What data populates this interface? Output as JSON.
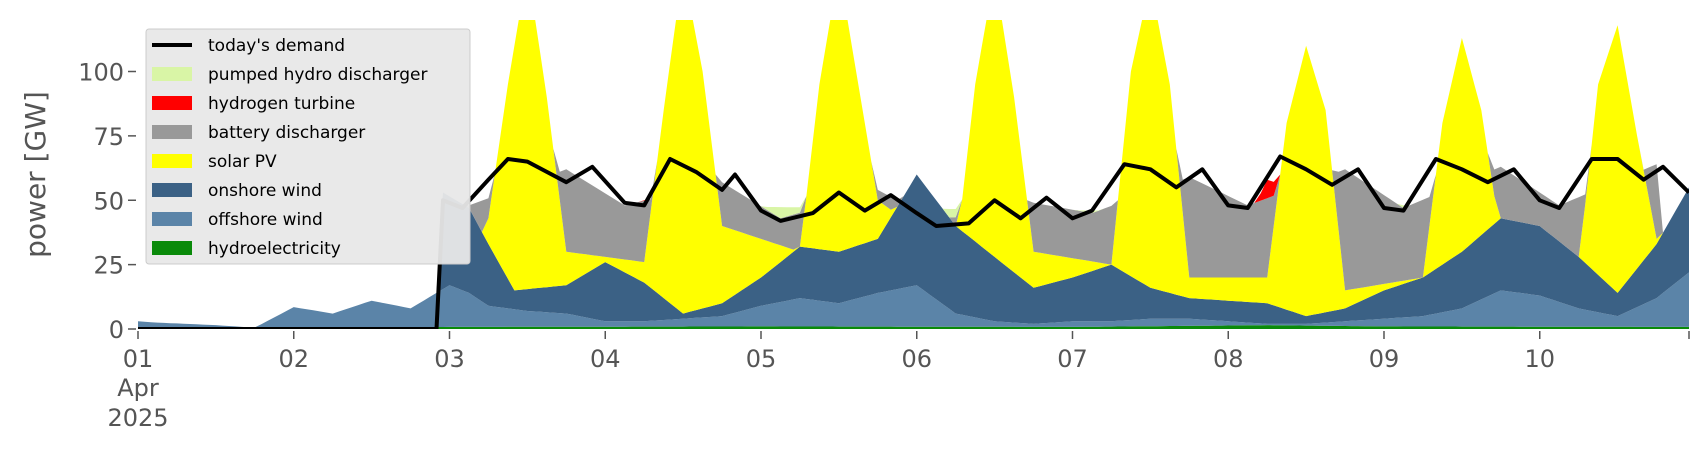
{
  "chart_data": {
    "type": "area",
    "title": "",
    "xlabel": "",
    "ylabel": "power [GW]",
    "ylim": [
      0,
      120
    ],
    "yticks": [
      0,
      25,
      50,
      75,
      100
    ],
    "x_range": [
      "2025-04-01T00:00",
      "2025-04-10T23:00"
    ],
    "x_tick_dates": [
      "2025-04-01",
      "2025-04-02",
      "2025-04-03",
      "2025-04-04",
      "2025-04-05",
      "2025-04-06",
      "2025-04-07",
      "2025-04-08",
      "2025-04-09",
      "2025-04-10"
    ],
    "x_tick_labels": [
      "01",
      "02",
      "03",
      "04",
      "05",
      "06",
      "07",
      "08",
      "09",
      "10"
    ],
    "x_tick_sublabels": [
      "Apr",
      "2025"
    ],
    "stacking": "stacked, bottom to top: hydroelectricity, offshore wind, onshore wind, solar PV, battery discharger, hydrogen turbine, pumped hydro discharger",
    "legend_position": "upper left",
    "grid": false,
    "legend_order": [
      "today's demand",
      "pumped hydro discharger",
      "hydrogen turbine",
      "battery discharger",
      "solar PV",
      "onshore wind",
      "offshore wind",
      "hydroelectricity"
    ],
    "series": [
      {
        "name": "hydroelectricity",
        "color": "#0a8a0a",
        "points": [
          [
            "2025-04-01T00:00",
            0.5
          ],
          [
            "2025-04-03T00:00",
            0.8
          ],
          [
            "2025-04-05T00:00",
            1.0
          ],
          [
            "2025-04-07T00:00",
            0.8
          ],
          [
            "2025-04-08T06:00",
            1.5
          ],
          [
            "2025-04-09T00:00",
            1.0
          ],
          [
            "2025-04-10T23:00",
            0.8
          ]
        ]
      },
      {
        "name": "offshore wind",
        "color": "#5b84a8",
        "points": [
          [
            "2025-04-01T00:00",
            3
          ],
          [
            "2025-04-01T02:00",
            2.6
          ],
          [
            "2025-04-01T12:00",
            1.5
          ],
          [
            "2025-04-01T18:00",
            0.5
          ],
          [
            "2025-04-02T00:00",
            8.5
          ],
          [
            "2025-04-02T06:00",
            6
          ],
          [
            "2025-04-02T12:00",
            11
          ],
          [
            "2025-04-02T18:00",
            8
          ],
          [
            "2025-04-03T00:00",
            17
          ],
          [
            "2025-04-03T03:00",
            14
          ],
          [
            "2025-04-03T06:00",
            9
          ],
          [
            "2025-04-03T12:00",
            7
          ],
          [
            "2025-04-03T18:00",
            6
          ],
          [
            "2025-04-04T00:00",
            3
          ],
          [
            "2025-04-04T06:00",
            3
          ],
          [
            "2025-04-04T12:00",
            4
          ],
          [
            "2025-04-04T18:00",
            5
          ],
          [
            "2025-04-05T00:00",
            9
          ],
          [
            "2025-04-05T06:00",
            12
          ],
          [
            "2025-04-05T12:00",
            10
          ],
          [
            "2025-04-05T18:00",
            14
          ],
          [
            "2025-04-06T00:00",
            17
          ],
          [
            "2025-04-06T06:00",
            6
          ],
          [
            "2025-04-06T12:00",
            3
          ],
          [
            "2025-04-06T18:00",
            2
          ],
          [
            "2025-04-07T00:00",
            3
          ],
          [
            "2025-04-07T06:00",
            3
          ],
          [
            "2025-04-07T12:00",
            4
          ],
          [
            "2025-04-07T18:00",
            4
          ],
          [
            "2025-04-08T00:00",
            3
          ],
          [
            "2025-04-08T06:00",
            2
          ],
          [
            "2025-04-08T12:00",
            2
          ],
          [
            "2025-04-08T18:00",
            3
          ],
          [
            "2025-04-09T00:00",
            4
          ],
          [
            "2025-04-09T06:00",
            5
          ],
          [
            "2025-04-09T12:00",
            8
          ],
          [
            "2025-04-09T18:00",
            15
          ],
          [
            "2025-04-10T00:00",
            13
          ],
          [
            "2025-04-10T06:00",
            8
          ],
          [
            "2025-04-10T12:00",
            5
          ],
          [
            "2025-04-10T18:00",
            12
          ],
          [
            "2025-04-10T23:00",
            22
          ]
        ]
      },
      {
        "name": "onshore wind",
        "color": "#3b6185",
        "points": [
          [
            "2025-04-01T00:00",
            0
          ],
          [
            "2025-04-02T22:59",
            0
          ],
          [
            "2025-04-02T23:00",
            53
          ],
          [
            "2025-04-03T03:00",
            47
          ],
          [
            "2025-04-03T06:00",
            33
          ],
          [
            "2025-04-03T10:00",
            15
          ],
          [
            "2025-04-03T18:00",
            17
          ],
          [
            "2025-04-04T00:00",
            26
          ],
          [
            "2025-04-04T06:00",
            18
          ],
          [
            "2025-04-04T12:00",
            6
          ],
          [
            "2025-04-04T18:00",
            10
          ],
          [
            "2025-04-05T00:00",
            20
          ],
          [
            "2025-04-05T06:00",
            32
          ],
          [
            "2025-04-05T12:00",
            30
          ],
          [
            "2025-04-05T18:00",
            35
          ],
          [
            "2025-04-06T00:00",
            60
          ],
          [
            "2025-04-06T06:00",
            40
          ],
          [
            "2025-04-06T12:00",
            28
          ],
          [
            "2025-04-06T18:00",
            16
          ],
          [
            "2025-04-07T00:00",
            20
          ],
          [
            "2025-04-07T06:00",
            25
          ],
          [
            "2025-04-07T12:00",
            16
          ],
          [
            "2025-04-07T18:00",
            12
          ],
          [
            "2025-04-08T00:00",
            11
          ],
          [
            "2025-04-08T06:00",
            10
          ],
          [
            "2025-04-08T12:00",
            5
          ],
          [
            "2025-04-08T18:00",
            8
          ],
          [
            "2025-04-09T00:00",
            15
          ],
          [
            "2025-04-09T06:00",
            20
          ],
          [
            "2025-04-09T12:00",
            30
          ],
          [
            "2025-04-09T18:00",
            43
          ],
          [
            "2025-04-10T00:00",
            40
          ],
          [
            "2025-04-10T06:00",
            28
          ],
          [
            "2025-04-10T12:00",
            14
          ],
          [
            "2025-04-10T18:00",
            33
          ],
          [
            "2025-04-10T23:00",
            55
          ]
        ]
      },
      {
        "name": "solar PV",
        "color": "#ffff00",
        "points": [
          [
            "2025-04-03T06:00",
            43
          ],
          [
            "2025-04-03T09:00",
            95
          ],
          [
            "2025-04-03T12:00",
            140
          ],
          [
            "2025-04-03T15:00",
            90
          ],
          [
            "2025-04-03T18:00",
            30
          ],
          [
            "2025-04-04T06:00",
            26
          ],
          [
            "2025-04-04T09:00",
            85
          ],
          [
            "2025-04-04T12:00",
            140
          ],
          [
            "2025-04-04T15:00",
            100
          ],
          [
            "2025-04-04T18:00",
            40
          ],
          [
            "2025-04-05T06:00",
            30
          ],
          [
            "2025-04-05T09:00",
            95
          ],
          [
            "2025-04-05T12:00",
            140
          ],
          [
            "2025-04-05T15:00",
            95
          ],
          [
            "2025-04-05T18:00",
            50
          ],
          [
            "2025-04-06T06:00",
            28
          ],
          [
            "2025-04-06T09:00",
            95
          ],
          [
            "2025-04-06T12:00",
            138
          ],
          [
            "2025-04-06T15:00",
            90
          ],
          [
            "2025-04-06T18:00",
            30
          ],
          [
            "2025-04-07T06:00",
            25
          ],
          [
            "2025-04-07T09:00",
            100
          ],
          [
            "2025-04-07T12:00",
            135
          ],
          [
            "2025-04-07T15:00",
            95
          ],
          [
            "2025-04-07T18:00",
            20
          ],
          [
            "2025-04-08T06:00",
            20
          ],
          [
            "2025-04-08T09:00",
            80
          ],
          [
            "2025-04-08T12:00",
            110
          ],
          [
            "2025-04-08T15:00",
            85
          ],
          [
            "2025-04-08T18:00",
            15
          ],
          [
            "2025-04-09T06:00",
            20
          ],
          [
            "2025-04-09T09:00",
            80
          ],
          [
            "2025-04-09T12:00",
            113
          ],
          [
            "2025-04-09T15:00",
            85
          ],
          [
            "2025-04-09T18:00",
            35
          ],
          [
            "2025-04-10T06:00",
            25
          ],
          [
            "2025-04-10T09:00",
            95
          ],
          [
            "2025-04-10T12:00",
            118
          ],
          [
            "2025-04-10T15:00",
            75
          ],
          [
            "2025-04-10T18:00",
            35
          ]
        ]
      },
      {
        "name": "battery discharger",
        "color": "#999999",
        "points": [
          [
            "2025-04-03T03:00",
            48
          ],
          [
            "2025-04-03T18:00",
            62
          ],
          [
            "2025-04-04T03:00",
            48
          ],
          [
            "2025-04-04T18:00",
            57
          ],
          [
            "2025-04-05T03:00",
            43
          ],
          [
            "2025-04-05T18:00",
            54
          ],
          [
            "2025-04-06T03:00",
            42
          ],
          [
            "2025-04-06T18:00",
            49
          ],
          [
            "2025-04-07T03:00",
            45
          ],
          [
            "2025-04-07T18:00",
            59
          ],
          [
            "2025-04-08T03:00",
            48
          ],
          [
            "2025-04-08T18:00",
            62
          ],
          [
            "2025-04-09T03:00",
            47
          ],
          [
            "2025-04-09T18:00",
            63
          ],
          [
            "2025-04-10T03:00",
            48
          ],
          [
            "2025-04-10T18:00",
            64
          ]
        ]
      },
      {
        "name": "hydrogen turbine",
        "color": "#ff0000",
        "points": [
          [
            "2025-04-04T03:00",
            37
          ],
          [
            "2025-04-04T06:00",
            50
          ],
          [
            "2025-04-07T03:00",
            27
          ],
          [
            "2025-04-07T06:00",
            40
          ],
          [
            "2025-04-08T03:00",
            42
          ],
          [
            "2025-04-08T06:00",
            58
          ],
          [
            "2025-04-09T03:00",
            40
          ],
          [
            "2025-04-09T06:00",
            50
          ],
          [
            "2025-04-10T03:00",
            42
          ],
          [
            "2025-04-10T06:00",
            45
          ]
        ]
      },
      {
        "name": "pumped hydro discharger",
        "color": "#d9f5a6",
        "points": [
          [
            "2025-04-04T03:00",
            48
          ],
          [
            "2025-04-07T03:00",
            46
          ],
          [
            "2025-04-09T03:00",
            48
          ],
          [
            "2025-04-10T03:00",
            48
          ]
        ]
      },
      {
        "name": "today's demand",
        "color": "#000000",
        "kind": "line",
        "points": [
          [
            "2025-04-01T00:00",
            0
          ],
          [
            "2025-04-02T22:00",
            0
          ],
          [
            "2025-04-02T23:00",
            50
          ],
          [
            "2025-04-03T02:00",
            47
          ],
          [
            "2025-04-03T06:00",
            58
          ],
          [
            "2025-04-03T09:00",
            66
          ],
          [
            "2025-04-03T12:00",
            65
          ],
          [
            "2025-04-03T15:00",
            61
          ],
          [
            "2025-04-03T18:00",
            57
          ],
          [
            "2025-04-03T22:00",
            63
          ],
          [
            "2025-04-04T03:00",
            49
          ],
          [
            "2025-04-04T06:00",
            48
          ],
          [
            "2025-04-04T10:00",
            66
          ],
          [
            "2025-04-04T14:00",
            61
          ],
          [
            "2025-04-04T18:00",
            54
          ],
          [
            "2025-04-04T20:00",
            60
          ],
          [
            "2025-04-05T00:00",
            46
          ],
          [
            "2025-04-05T03:00",
            42
          ],
          [
            "2025-04-05T08:00",
            45
          ],
          [
            "2025-04-05T12:00",
            53
          ],
          [
            "2025-04-05T16:00",
            46
          ],
          [
            "2025-04-05T20:00",
            52
          ],
          [
            "2025-04-06T00:00",
            45
          ],
          [
            "2025-04-06T03:00",
            40
          ],
          [
            "2025-04-06T08:00",
            41
          ],
          [
            "2025-04-06T12:00",
            50
          ],
          [
            "2025-04-06T16:00",
            43
          ],
          [
            "2025-04-06T20:00",
            51
          ],
          [
            "2025-04-07T00:00",
            43
          ],
          [
            "2025-04-07T03:00",
            46
          ],
          [
            "2025-04-07T08:00",
            64
          ],
          [
            "2025-04-07T12:00",
            62
          ],
          [
            "2025-04-07T16:00",
            55
          ],
          [
            "2025-04-07T20:00",
            62
          ],
          [
            "2025-04-08T00:00",
            48
          ],
          [
            "2025-04-08T03:00",
            47
          ],
          [
            "2025-04-08T08:00",
            67
          ],
          [
            "2025-04-08T12:00",
            62
          ],
          [
            "2025-04-08T16:00",
            56
          ],
          [
            "2025-04-08T20:00",
            62
          ],
          [
            "2025-04-09T00:00",
            47
          ],
          [
            "2025-04-09T03:00",
            46
          ],
          [
            "2025-04-09T08:00",
            66
          ],
          [
            "2025-04-09T12:00",
            62
          ],
          [
            "2025-04-09T16:00",
            57
          ],
          [
            "2025-04-09T20:00",
            62
          ],
          [
            "2025-04-10T00:00",
            50
          ],
          [
            "2025-04-10T03:00",
            47
          ],
          [
            "2025-04-10T08:00",
            66
          ],
          [
            "2025-04-10T12:00",
            66
          ],
          [
            "2025-04-10T16:00",
            58
          ],
          [
            "2025-04-10T19:00",
            63
          ],
          [
            "2025-04-10T23:00",
            53
          ]
        ]
      }
    ]
  }
}
